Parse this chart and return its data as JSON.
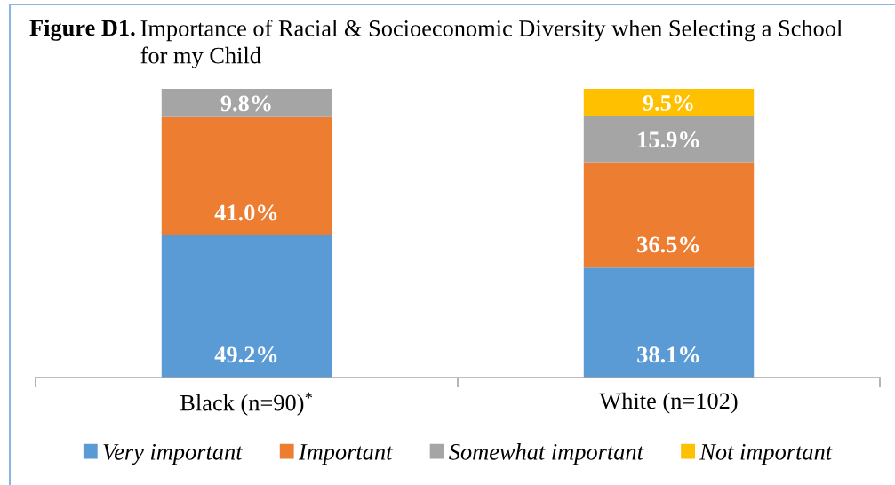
{
  "chart_data": {
    "type": "bar",
    "stacked": true,
    "legend": "bottom",
    "title": "Figure D1.",
    "subtitle": "Importance of Racial & Socioeconomic Diversity when Selecting a School for my Child",
    "categories": [
      "Black (n=90)$^{*}$",
      "White (n=102)"
    ],
    "series": [
      {
        "name": "Very important",
        "color": "#5b9bd5",
        "values": [
          49.2,
          38.1
        ],
        "value_labels": [
          "49.2%",
          "38.1%"
        ]
      },
      {
        "name": "Important",
        "color": "#ed7d31",
        "values": [
          41.0,
          36.5
        ],
        "value_labels": [
          "41.0%",
          "36.5%"
        ]
      },
      {
        "name": "Somewhat important",
        "color": "#a5a5a5",
        "values": [
          9.8,
          15.9
        ],
        "value_labels": [
          "9.8%",
          "15.9%"
        ]
      },
      {
        "name": "Not important",
        "color": "#ffc000",
        "values": [
          null,
          9.5
        ],
        "value_labels": [
          null,
          "9.5%"
        ]
      }
    ]
  }
}
